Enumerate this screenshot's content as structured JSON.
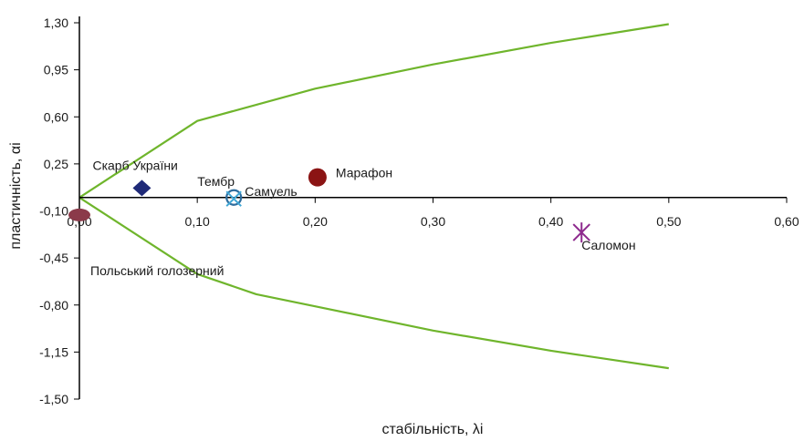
{
  "chart_data": {
    "type": "scatter",
    "xlabel": "стабільність, λi",
    "ylabel": "пластичність, αi",
    "xlim": [
      0,
      0.6
    ],
    "ylim": [
      -1.5,
      1.3
    ],
    "x_ticks": [
      "0,00",
      "0,10",
      "0,20",
      "0,30",
      "0,40",
      "0,50",
      "0,60"
    ],
    "y_ticks": [
      "1,30",
      "0,95",
      "0,60",
      "0,25",
      "-0,10",
      "-0,45",
      "-0,80",
      "-1,15",
      "-1,50"
    ],
    "grid": false,
    "colors": {
      "boundary": "#6fb52c",
      "axis": "#000000"
    },
    "boundary_upper": {
      "x": [
        0,
        0.1,
        0.2,
        0.3,
        0.4,
        0.5
      ],
      "y": [
        0.0,
        0.57,
        0.81,
        0.99,
        1.15,
        1.29
      ]
    },
    "boundary_lower": {
      "x": [
        0,
        0.1,
        0.15,
        0.2,
        0.3,
        0.4,
        0.5
      ],
      "y": [
        0.0,
        -0.57,
        -0.72,
        -0.81,
        -0.99,
        -1.14,
        -1.27
      ]
    },
    "points": [
      {
        "label": "Скарб України",
        "x": 0.053,
        "y": 0.07,
        "marker": "diamond",
        "color": "#1f2a78"
      },
      {
        "label": "Тембр",
        "x": 0.131,
        "y": 0.0,
        "marker": "circle-open",
        "color": "#2e6d9e"
      },
      {
        "label": "Самуель",
        "x": 0.131,
        "y": -0.01,
        "marker": "x",
        "color": "#3fa7d6"
      },
      {
        "label": "Марафон",
        "x": 0.202,
        "y": 0.15,
        "marker": "circle",
        "color": "#8b1414"
      },
      {
        "label": "Саломон",
        "x": 0.426,
        "y": -0.26,
        "marker": "asterisk",
        "color": "#8e2a8e"
      },
      {
        "label": "Польський голозерний",
        "x": 0.0,
        "y": -0.13,
        "marker": "ellipse",
        "color": "#8b3a4a"
      }
    ]
  }
}
